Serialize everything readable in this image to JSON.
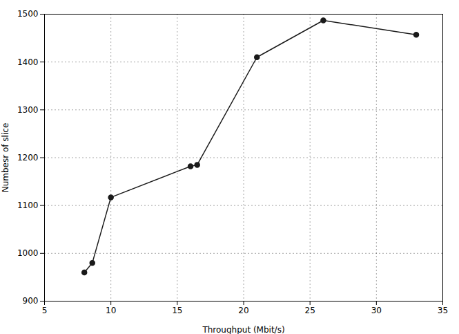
{
  "chart_data": {
    "type": "line",
    "x": [
      8.0,
      8.6,
      10.0,
      16.0,
      16.5,
      21.0,
      26.0,
      33.0
    ],
    "values": [
      960,
      980,
      1117,
      1182,
      1185,
      1410,
      1487,
      1457
    ],
    "xlabel": "Throughput (Mbit/s)",
    "ylabel": "Numbesr of slice",
    "xlim": [
      5,
      35
    ],
    "ylim": [
      900,
      1500
    ],
    "xticks": [
      5,
      10,
      15,
      20,
      25,
      30,
      35
    ],
    "yticks": [
      900,
      1000,
      1100,
      1200,
      1300,
      1400,
      1500
    ],
    "color": "#1a1a1a",
    "marker": "circle",
    "grid": true
  }
}
